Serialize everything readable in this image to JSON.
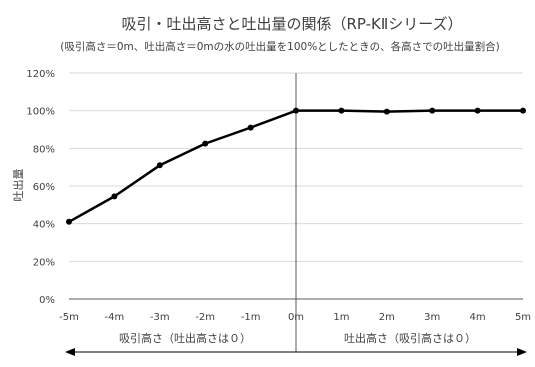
{
  "chart_data": {
    "type": "line",
    "title": "吸引・吐出高さと吐出量の関係（RP-KⅡシリーズ）",
    "subtitle": "(吸引高さ＝0m、吐出高さ＝0mの水の吐出量を100%としたときの、各高さでの吐出量割合)",
    "ylabel": "吐出量",
    "xlabel": "",
    "categories": [
      "-5m",
      "-4m",
      "-3m",
      "-2m",
      "-1m",
      "0m",
      "1m",
      "2m",
      "3m",
      "4m",
      "5m"
    ],
    "x": [
      -5,
      -4,
      -3,
      -2,
      -1,
      0,
      1,
      2,
      3,
      4,
      5
    ],
    "series": [
      {
        "values": [
          41,
          54.5,
          71,
          82.5,
          91,
          100,
          100,
          99.5,
          100,
          100,
          100
        ]
      }
    ],
    "ylim": [
      0,
      120
    ],
    "yticks": [
      0,
      20,
      40,
      60,
      80,
      100,
      120
    ],
    "ytick_labels": [
      "0%",
      "20%",
      "40%",
      "60%",
      "80%",
      "100%",
      "120%"
    ],
    "grid": true,
    "legend": "none",
    "regions": {
      "left_label": "吸引高さ（吐出高さは０）",
      "right_label": "吐出高さ（吸引高さは０）"
    },
    "colors": {
      "line": "#000000",
      "grid": "#d9d9d9",
      "axis": "#595959"
    }
  }
}
